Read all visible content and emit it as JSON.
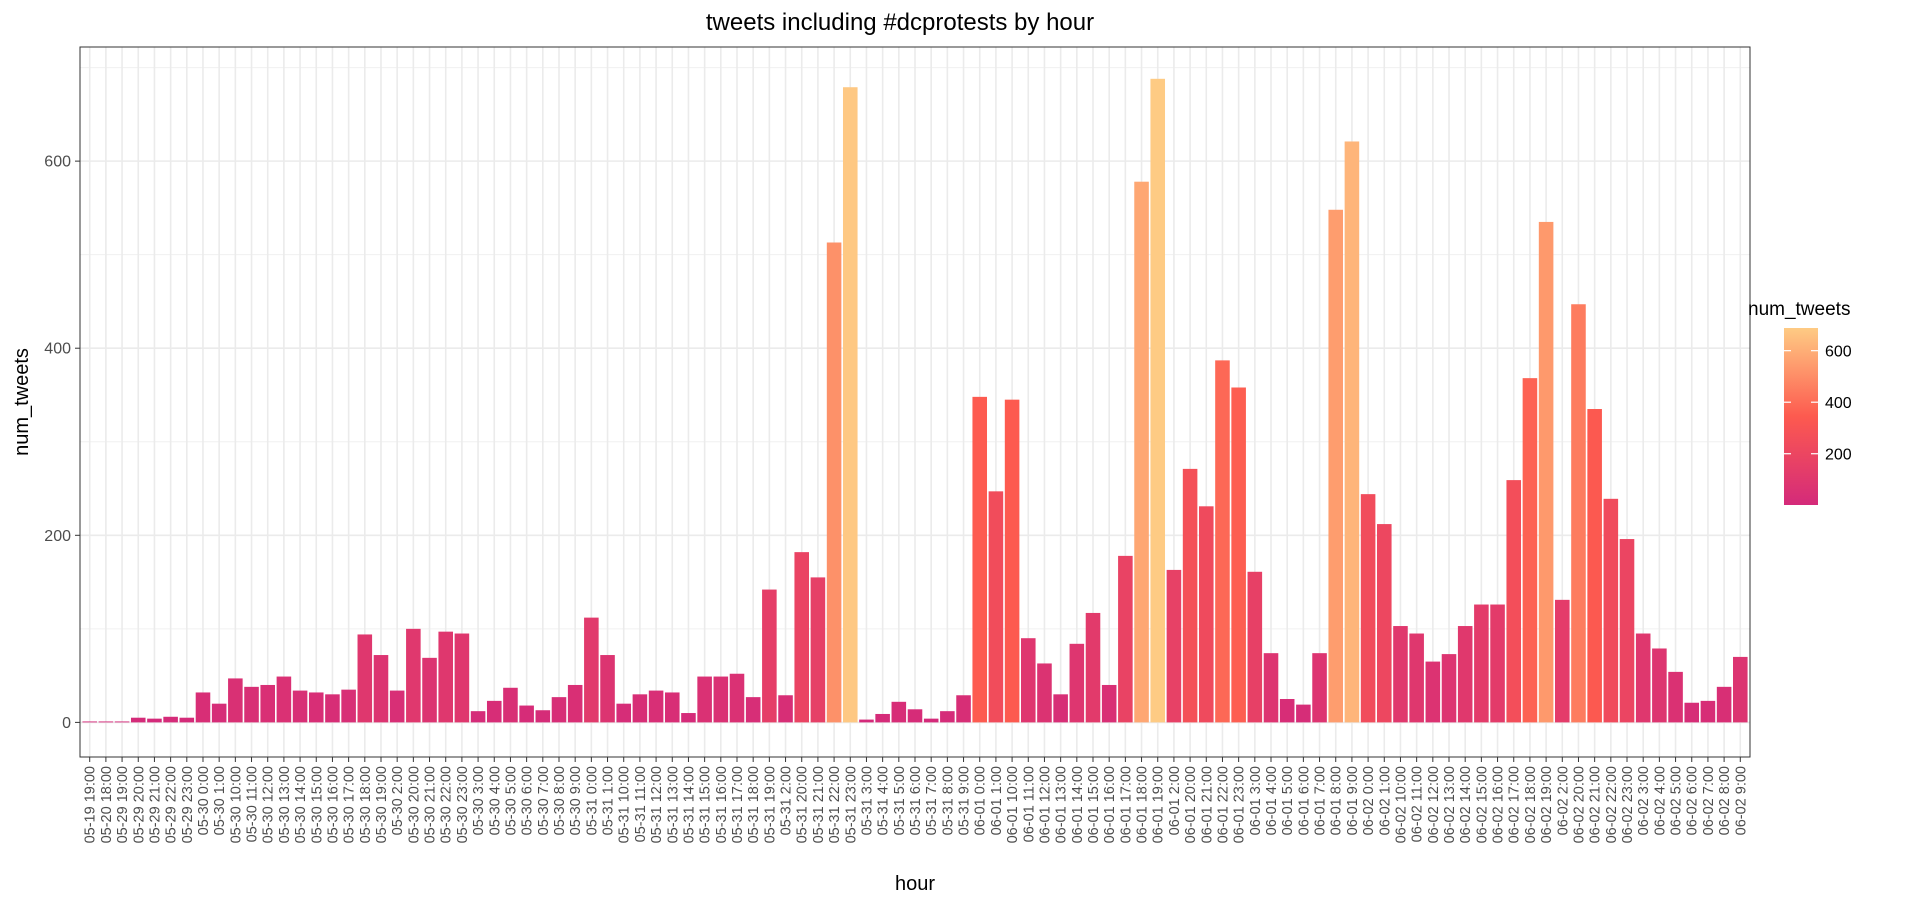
{
  "chart_data": {
    "type": "bar",
    "title": "tweets including #dcprotests by hour",
    "xlabel": "hour",
    "ylabel": "num_tweets",
    "ylim": [
      -37,
      722
    ],
    "yticks": [
      0,
      200,
      400,
      600
    ],
    "grid": true,
    "legend": {
      "title": "num_tweets",
      "placement": "right",
      "type": "colorbar",
      "ticks": [
        200,
        400,
        600
      ],
      "range": [
        1,
        688
      ],
      "colors": {
        "low": "#d42a7a",
        "mid": "#fd5a4f",
        "high": "#fecb84"
      }
    },
    "categories": [
      "05-19 19:00",
      "05-20 18:00",
      "05-29 19:00",
      "05-29 20:00",
      "05-29 21:00",
      "05-29 22:00",
      "05-29 23:00",
      "05-30 0:00",
      "05-30 1:00",
      "05-30 10:00",
      "05-30 11:00",
      "05-30 12:00",
      "05-30 13:00",
      "05-30 14:00",
      "05-30 15:00",
      "05-30 16:00",
      "05-30 17:00",
      "05-30 18:00",
      "05-30 19:00",
      "05-30 2:00",
      "05-30 20:00",
      "05-30 21:00",
      "05-30 22:00",
      "05-30 23:00",
      "05-30 3:00",
      "05-30 4:00",
      "05-30 5:00",
      "05-30 6:00",
      "05-30 7:00",
      "05-30 8:00",
      "05-30 9:00",
      "05-31 0:00",
      "05-31 1:00",
      "05-31 10:00",
      "05-31 11:00",
      "05-31 12:00",
      "05-31 13:00",
      "05-31 14:00",
      "05-31 15:00",
      "05-31 16:00",
      "05-31 17:00",
      "05-31 18:00",
      "05-31 19:00",
      "05-31 2:00",
      "05-31 20:00",
      "05-31 21:00",
      "05-31 22:00",
      "05-31 23:00",
      "05-31 3:00",
      "05-31 4:00",
      "05-31 5:00",
      "05-31 6:00",
      "05-31 7:00",
      "05-31 8:00",
      "05-31 9:00",
      "06-01 0:00",
      "06-01 1:00",
      "06-01 10:00",
      "06-01 11:00",
      "06-01 12:00",
      "06-01 13:00",
      "06-01 14:00",
      "06-01 15:00",
      "06-01 16:00",
      "06-01 17:00",
      "06-01 18:00",
      "06-01 19:00",
      "06-01 2:00",
      "06-01 20:00",
      "06-01 21:00",
      "06-01 22:00",
      "06-01 23:00",
      "06-01 3:00",
      "06-01 4:00",
      "06-01 5:00",
      "06-01 6:00",
      "06-01 7:00",
      "06-01 8:00",
      "06-01 9:00",
      "06-02 0:00",
      "06-02 1:00",
      "06-02 10:00",
      "06-02 11:00",
      "06-02 12:00",
      "06-02 13:00",
      "06-02 14:00",
      "06-02 15:00",
      "06-02 16:00",
      "06-02 17:00",
      "06-02 18:00",
      "06-02 19:00",
      "06-02 2:00",
      "06-02 20:00",
      "06-02 21:00",
      "06-02 22:00",
      "06-02 23:00",
      "06-02 3:00",
      "06-02 4:00",
      "06-02 5:00",
      "06-02 6:00",
      "06-02 7:00",
      "06-02 8:00",
      "06-02 9:00"
    ],
    "values": [
      1,
      1,
      1,
      5,
      4,
      6,
      5,
      32,
      20,
      47,
      38,
      40,
      49,
      34,
      32,
      30,
      35,
      94,
      72,
      34,
      100,
      69,
      97,
      95,
      12,
      23,
      37,
      18,
      13,
      27,
      40,
      112,
      72,
      20,
      30,
      34,
      32,
      10,
      49,
      49,
      52,
      27,
      142,
      29,
      182,
      155,
      513,
      679,
      3,
      9,
      22,
      14,
      4,
      12,
      29,
      348,
      247,
      345,
      90,
      63,
      30,
      84,
      117,
      40,
      178,
      578,
      688,
      163,
      271,
      231,
      387,
      358,
      161,
      74,
      25,
      19,
      74,
      548,
      621,
      244,
      212,
      103,
      95,
      65,
      73,
      103,
      126,
      126,
      259,
      368,
      535,
      131,
      447,
      335,
      239,
      196,
      95,
      79,
      54,
      21,
      23,
      38,
      70
    ]
  }
}
